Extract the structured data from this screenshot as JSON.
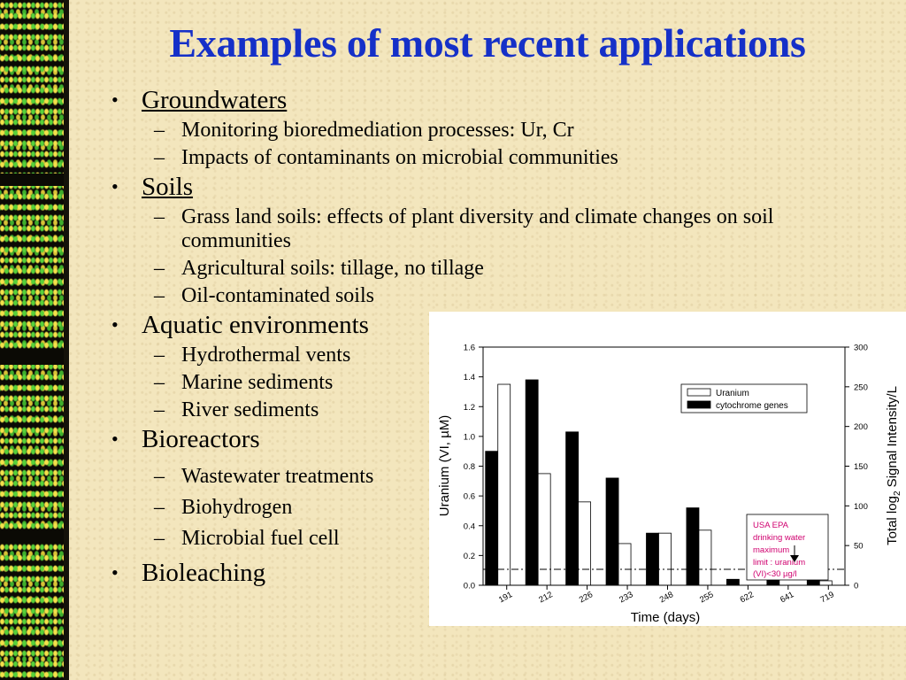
{
  "slide": {
    "title": "Examples of most recent applications",
    "sections": [
      {
        "heading": "Groundwaters",
        "underlined": true,
        "items": [
          "Monitoring bioredmediation processes: Ur, Cr",
          "Impacts of contaminants on microbial communities"
        ]
      },
      {
        "heading": "Soils",
        "underlined": true,
        "items": [
          "Grass land soils: effects of plant diversity and climate changes on soil",
          "communities",
          "Agricultural soils: tillage, no tillage",
          "Oil-contaminated soils"
        ]
      },
      {
        "heading": "Aquatic environments",
        "underlined": false,
        "items": [
          "Hydrothermal vents",
          "Marine sediments",
          "River sediments"
        ]
      },
      {
        "heading": "Bioreactors",
        "underlined": false,
        "items": [
          "Wastewater treatments",
          "Biohydrogen",
          "Microbial fuel cell"
        ]
      },
      {
        "heading": "Bioleaching",
        "underlined": false,
        "items": []
      }
    ],
    "bullet_symbol": "•",
    "dash_symbol": "–"
  },
  "colors": {
    "title": "#1530c8",
    "background": "#f3e6bd",
    "annotation": "#d0006f"
  },
  "chart_data": {
    "type": "bar",
    "categories": [
      "191",
      "212",
      "226",
      "233",
      "248",
      "255",
      "622",
      "641",
      "719"
    ],
    "xlabel": "Time (days)",
    "ylabel_left": "Uranium (VI, µM)",
    "ylabel_right_prefix": "Total log",
    "ylabel_right_sub": "2",
    "ylabel_right_suffix": " Signal Intensity/L",
    "ylim_left": [
      0,
      1.6
    ],
    "ylim_right": [
      0,
      300
    ],
    "yticks_left": [
      "0.0",
      "0.2",
      "0.4",
      "0.6",
      "0.8",
      "1.0",
      "1.2",
      "1.4",
      "1.6"
    ],
    "yticks_right": [
      "0",
      "50",
      "100",
      "150",
      "200",
      "250",
      "300"
    ],
    "series": [
      {
        "name": "Uranium",
        "axis": "left",
        "fill": "#ffffff",
        "values": [
          1.35,
          0.75,
          0.56,
          0.28,
          0.35,
          0.37,
          0.0,
          0.0,
          0.03
        ]
      },
      {
        "name": "cytochrome genes",
        "axis": "left",
        "fill": "#000000",
        "values": [
          0.9,
          1.38,
          1.03,
          0.72,
          0.35,
          0.52,
          0.04,
          0.18,
          0.05
        ]
      }
    ],
    "reference_line": {
      "value": 0.107,
      "style": "dash-dot"
    },
    "annotation": {
      "lines": [
        "USA EPA",
        "drinking water",
        "maximum",
        "limit : uranium",
        "(VI)<30 µg/l"
      ]
    },
    "legend_position": "top-right"
  }
}
